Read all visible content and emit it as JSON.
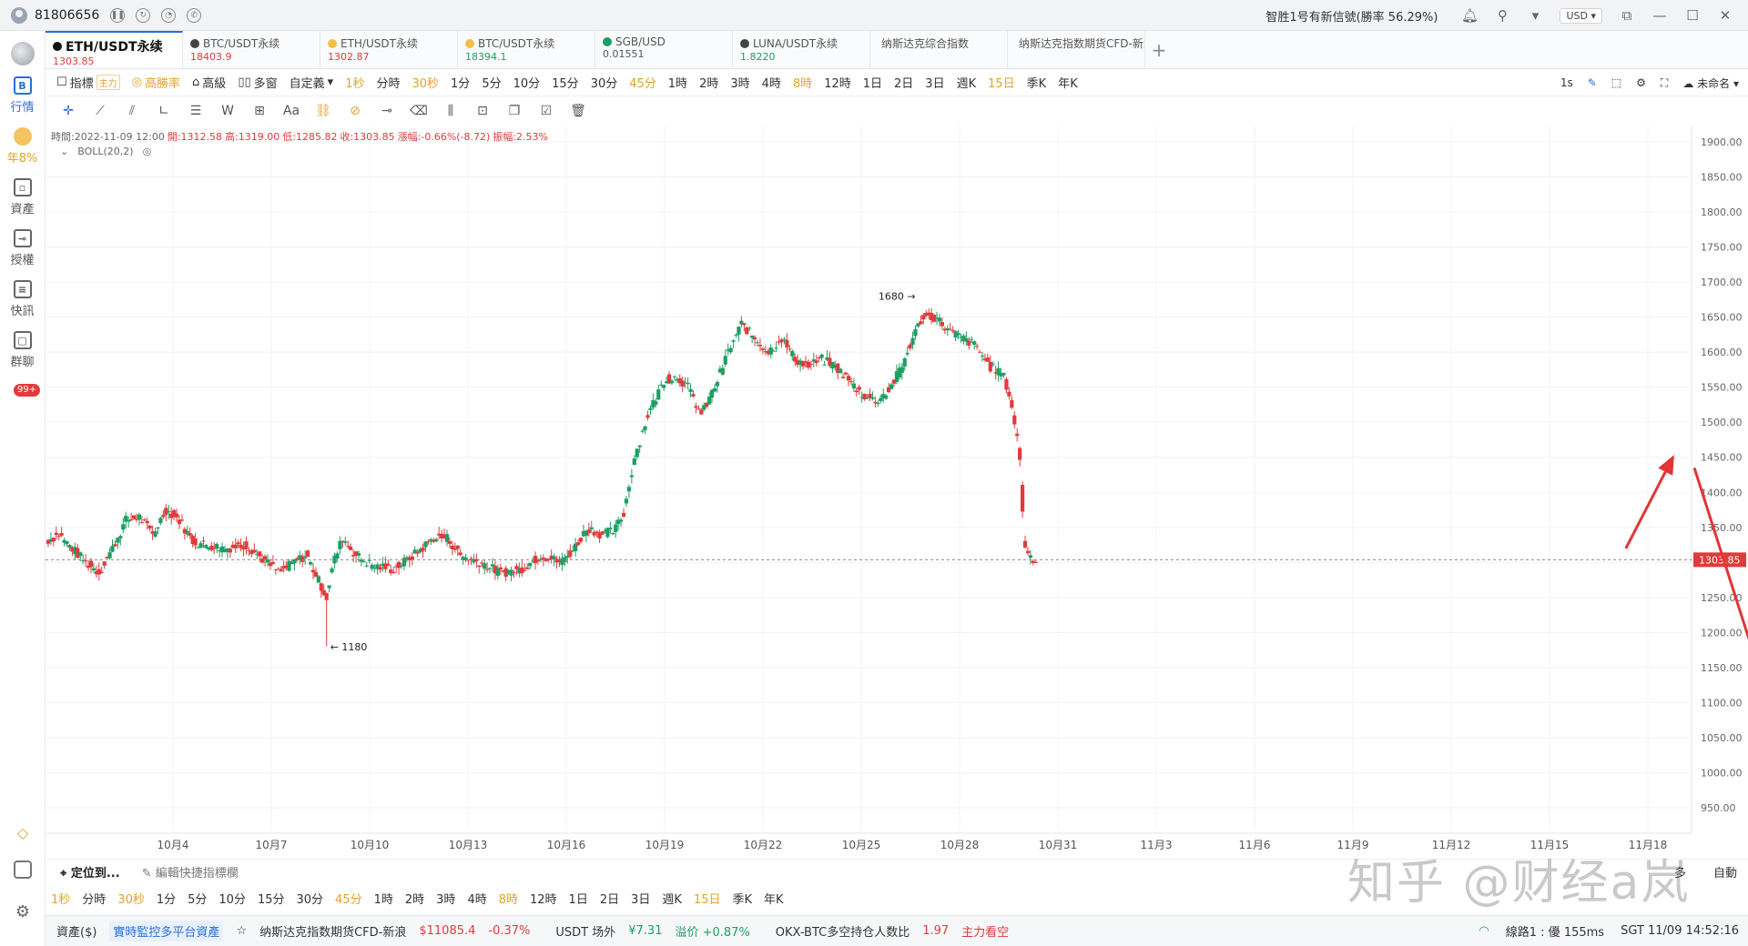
{
  "topbar": {
    "user_id": "81806656",
    "notice": "智胜1号有新信號(勝率 56.29%)",
    "currency": "USD"
  },
  "sidebar": {
    "items": [
      {
        "label": "行情",
        "icon": "market-icon"
      },
      {
        "label": "年8%",
        "icon": "earn-icon"
      },
      {
        "label": "資產",
        "icon": "wallet-icon"
      },
      {
        "label": "授權",
        "icon": "authorize-icon"
      },
      {
        "label": "快訊",
        "icon": "news-icon"
      },
      {
        "label": "群聊",
        "icon": "chat-icon"
      }
    ],
    "badge": "99+"
  },
  "tabs": [
    {
      "name": "ETH/USDT永续",
      "price": "1303.85",
      "color": "#e03b3b"
    },
    {
      "name": "BTC/USDT永续",
      "price": "18403.9",
      "color": "#e03b3b"
    },
    {
      "name": "ETH/USDT永续",
      "price": "1302.87",
      "color": "#e03b3b"
    },
    {
      "name": "BTC/USDT永续",
      "price": "18394.1",
      "color": "#1e9e63"
    },
    {
      "name": "SGB/USD",
      "price": "0.01551",
      "color": "#555555"
    },
    {
      "name": "LUNA/USDT永续",
      "price": "1.8220",
      "color": "#1e9e63"
    },
    {
      "name": "纳斯达克综合指数",
      "price": "",
      "color": "#555555"
    },
    {
      "name": "纳斯达克指数期货CFD-新浪",
      "price": "",
      "color": "#555555"
    }
  ],
  "intervals": {
    "indicator": "指標",
    "main_tag": "主力",
    "win_rate": "高勝率",
    "advanced": "高級",
    "multi": "多窗",
    "custom": "自定義",
    "items": [
      "1秒",
      "分時",
      "30秒",
      "1分",
      "5分",
      "10分",
      "15分",
      "30分",
      "45分",
      "1時",
      "2時",
      "3時",
      "4時",
      "8時",
      "12時",
      "1日",
      "2日",
      "3日",
      "週K",
      "15日",
      "季K",
      "年K"
    ],
    "gold_items": [
      "1秒",
      "30秒",
      "45分",
      "8時",
      "15日"
    ],
    "right_label": "1s",
    "unnamed": "未命名"
  },
  "legend": {
    "time": "時間:2022-11-09 12:00",
    "open": "開:1312.58",
    "high": "高:1319.00",
    "low": "低:1285.82",
    "close": "收:1303.85",
    "change": "漲幅:-0.66%(-8.72)",
    "amplitude": "振幅:2.53%",
    "boll": "BOLL(20,2)"
  },
  "chart_data": {
    "type": "candlestick",
    "y_ticks": [
      "1900.00",
      "1850.00",
      "1800.00",
      "1750.00",
      "1700.00",
      "1650.00",
      "1600.00",
      "1550.00",
      "1500.00",
      "1450.00",
      "1400.00",
      "1350.00",
      "1300.00",
      "1250.00",
      "1200.00",
      "1150.00",
      "1100.00",
      "1050.00",
      "1000.00",
      "950.00"
    ],
    "ylim": [
      920,
      1920
    ],
    "x_ticks": [
      "10月4",
      "10月7",
      "10月10",
      "10月13",
      "10月16",
      "10月19",
      "10月22",
      "10月25",
      "10月28",
      "10月31",
      "11月3",
      "11月6",
      "11月9",
      "11月12",
      "11月15",
      "11月18"
    ],
    "current_price": "1303.85",
    "high_marker": "1680",
    "low_marker": "1180",
    "anchors": [
      [
        0,
        1330
      ],
      [
        10,
        1340
      ],
      [
        20,
        1320
      ],
      [
        30,
        1300
      ],
      [
        40,
        1285
      ],
      [
        50,
        1320
      ],
      [
        60,
        1360
      ],
      [
        70,
        1365
      ],
      [
        80,
        1340
      ],
      [
        90,
        1375
      ],
      [
        100,
        1360
      ],
      [
        110,
        1330
      ],
      [
        120,
        1325
      ],
      [
        135,
        1320
      ],
      [
        150,
        1325
      ],
      [
        165,
        1300
      ],
      [
        175,
        1285
      ],
      [
        185,
        1300
      ],
      [
        195,
        1310
      ],
      [
        210,
        1250
      ],
      [
        215,
        1300
      ],
      [
        222,
        1335
      ],
      [
        232,
        1310
      ],
      [
        245,
        1295
      ],
      [
        260,
        1290
      ],
      [
        275,
        1310
      ],
      [
        290,
        1335
      ],
      [
        300,
        1335
      ],
      [
        310,
        1310
      ],
      [
        325,
        1300
      ],
      [
        340,
        1285
      ],
      [
        355,
        1290
      ],
      [
        370,
        1310
      ],
      [
        385,
        1300
      ],
      [
        395,
        1320
      ],
      [
        405,
        1350
      ],
      [
        415,
        1340
      ],
      [
        425,
        1345
      ],
      [
        432,
        1370
      ],
      [
        440,
        1450
      ],
      [
        450,
        1510
      ],
      [
        462,
        1560
      ],
      [
        472,
        1565
      ],
      [
        480,
        1550
      ],
      [
        490,
        1510
      ],
      [
        500,
        1550
      ],
      [
        510,
        1600
      ],
      [
        520,
        1640
      ],
      [
        530,
        1620
      ],
      [
        540,
        1600
      ],
      [
        550,
        1620
      ],
      [
        560,
        1590
      ],
      [
        570,
        1580
      ],
      [
        580,
        1590
      ],
      [
        590,
        1580
      ],
      [
        600,
        1560
      ],
      [
        610,
        1540
      ],
      [
        620,
        1530
      ],
      [
        630,
        1545
      ],
      [
        640,
        1580
      ],
      [
        648,
        1620
      ],
      [
        655,
        1650
      ],
      [
        665,
        1650
      ],
      [
        675,
        1630
      ],
      [
        685,
        1620
      ],
      [
        695,
        1610
      ],
      [
        705,
        1580
      ],
      [
        715,
        1570
      ],
      [
        720,
        1540
      ],
      [
        725,
        1490
      ],
      [
        728,
        1450
      ],
      [
        731,
        1330
      ],
      [
        735,
        1310
      ],
      [
        740,
        1303
      ]
    ],
    "annotation_arrows": [
      {
        "from": [
          738,
          1320
        ],
        "to": [
          760,
          1450
        ]
      },
      {
        "from": [
          770,
          1435
        ],
        "to": [
          805,
          1100
        ]
      }
    ]
  },
  "bottom": {
    "locate": "定位到...",
    "edit_hint": "編輯快捷指標欄",
    "right_a": "多",
    "right_b": "自動"
  },
  "status": {
    "assets": "資產($)",
    "monitor": "實時監控多平台資產",
    "index_name": "纳斯达克指数期货CFD-新浪",
    "index_value": "$11085.4",
    "index_change": "-0.37%",
    "usdt_label": "USDT 场外",
    "usdt_price": "¥7.31",
    "premium": "溢价 +0.87%",
    "ratio_label": "OKX-BTC多空持仓人数比",
    "ratio_value": "1.97",
    "ratio_note": "主力看空",
    "line": "線路1 : 優 155ms",
    "clock": "SGT 11/09 14:52:16"
  },
  "watermark": "知乎 @财经a岚",
  "colors": {
    "up": "#1e9e63",
    "down": "#e03b3b",
    "accent": "#2a6fd6",
    "gold": "#e0a32c",
    "arrow": "#e23535"
  }
}
